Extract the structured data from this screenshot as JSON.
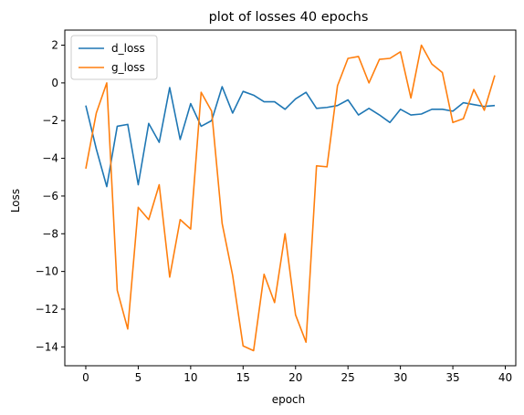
{
  "chart_data": {
    "type": "line",
    "title": "plot of losses 40 epochs",
    "xlabel": "epoch",
    "ylabel": "Loss",
    "xlim": [
      -2,
      41
    ],
    "ylim": [
      -15,
      2.8
    ],
    "xticks": [
      0,
      5,
      10,
      15,
      20,
      25,
      30,
      35,
      40
    ],
    "yticks": [
      -14,
      -12,
      -10,
      -8,
      -6,
      -4,
      -2,
      0,
      2
    ],
    "grid": false,
    "legend": "top-left",
    "x": [
      0,
      1,
      2,
      3,
      4,
      5,
      6,
      7,
      8,
      9,
      10,
      11,
      12,
      13,
      14,
      15,
      16,
      17,
      18,
      19,
      20,
      21,
      22,
      23,
      24,
      25,
      26,
      27,
      28,
      29,
      30,
      31,
      32,
      33,
      34,
      35,
      36,
      37,
      38,
      39
    ],
    "series": [
      {
        "name": "d_loss",
        "color": "#1f77b4",
        "values": [
          -1.2,
          -3.5,
          -5.5,
          -2.3,
          -2.2,
          -5.4,
          -2.15,
          -3.15,
          -0.25,
          -3.0,
          -1.1,
          -2.3,
          -2.0,
          -0.2,
          -1.6,
          -0.45,
          -0.65,
          -1.0,
          -1.0,
          -1.4,
          -0.85,
          -0.5,
          -1.35,
          -1.3,
          -1.2,
          -0.9,
          -1.7,
          -1.35,
          -1.7,
          -2.1,
          -1.4,
          -1.7,
          -1.65,
          -1.4,
          -1.4,
          -1.5,
          -1.05,
          -1.15,
          -1.25,
          -1.2
        ]
      },
      {
        "name": "g_loss",
        "color": "#ff7f0e",
        "values": [
          -4.55,
          -1.6,
          0.0,
          -11.0,
          -13.05,
          -6.6,
          -7.25,
          -5.4,
          -10.3,
          -7.25,
          -7.75,
          -0.5,
          -1.5,
          -7.45,
          -10.2,
          -13.95,
          -14.2,
          -10.15,
          -11.65,
          -8.0,
          -12.3,
          -13.75,
          -4.4,
          -4.45,
          -0.15,
          1.3,
          1.4,
          0.0,
          1.25,
          1.3,
          1.65,
          -0.8,
          2.0,
          1.0,
          0.55,
          -2.1,
          -1.9,
          -0.35,
          -1.45,
          0.4
        ]
      }
    ]
  }
}
